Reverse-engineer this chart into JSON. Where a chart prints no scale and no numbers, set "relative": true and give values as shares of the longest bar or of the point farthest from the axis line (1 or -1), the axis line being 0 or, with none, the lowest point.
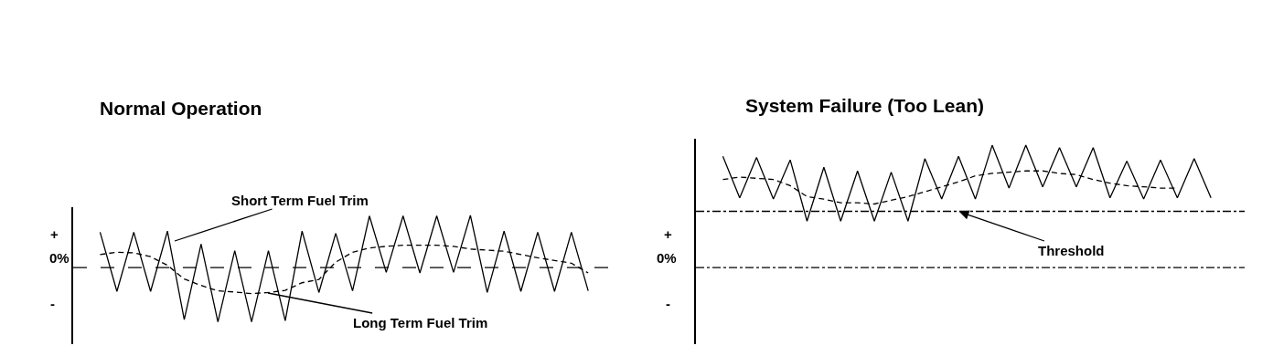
{
  "chart_data": [
    {
      "type": "line",
      "title": "Normal Operation",
      "relative": true,
      "categories": [
        null,
        null,
        null,
        null,
        null,
        null,
        null,
        null,
        null,
        null,
        null,
        null,
        null,
        null,
        null,
        null,
        null,
        null,
        null,
        null,
        null,
        null,
        null,
        null,
        null,
        null,
        null,
        null,
        null,
        null
      ],
      "marker": "none",
      "series": [
        {
          "color": "#000000",
          "line_style": "solid",
          "values": [
            0.65,
            -0.44,
            0.65,
            -0.44,
            0.67,
            -0.96,
            0.43,
            -1,
            0.31,
            -1,
            0.31,
            -0.98,
            0.67,
            -0.46,
            0.63,
            -0.43,
            0.95,
            -0.09,
            0.95,
            -0.1,
            0.95,
            -0.09,
            0.96,
            -0.46,
            0.67,
            -0.44,
            0.65,
            -0.44,
            0.65,
            -0.43
          ]
        },
        {
          "color": "#000000",
          "line_style": "dashed",
          "values": [
            0.24,
            0.28,
            0.27,
            0.2,
            0.04,
            -0.21,
            -0.33,
            -0.43,
            -0.45,
            -0.48,
            -0.46,
            -0.42,
            -0.28,
            -0.22,
            0.1,
            0.28,
            0.36,
            0.39,
            0.41,
            0.41,
            0.41,
            0.39,
            0.34,
            0.32,
            0.3,
            0.24,
            0.18,
            0.13,
            0.08,
            -0.1
          ]
        }
      ],
      "ref_lines": [
        {
          "axis": "y",
          "value": 0,
          "color": "#000000",
          "line_style": "dashed"
        }
      ],
      "annotations": [
        "+",
        "0%",
        "-",
        "Short Term Fuel Trim",
        "Long Term Fuel Trim"
      ]
    },
    {
      "type": "line",
      "title": "System Failure (Too Lean)",
      "relative": true,
      "categories": [
        null,
        null,
        null,
        null,
        null,
        null,
        null,
        null,
        null,
        null,
        null,
        null,
        null,
        null,
        null,
        null,
        null,
        null,
        null,
        null,
        null,
        null,
        null,
        null,
        null,
        null,
        null,
        null,
        null,
        null
      ],
      "marker": "none",
      "series": [
        {
          "color": "#000000",
          "line_style": "solid",
          "values": [
            0.91,
            0.57,
            0.9,
            0.56,
            0.88,
            0.38,
            0.82,
            0.38,
            0.79,
            0.38,
            0.78,
            0.38,
            0.89,
            0.56,
            0.91,
            0.56,
            1,
            0.65,
            1,
            0.66,
            0.98,
            0.66,
            0.98,
            0.57,
            0.87,
            0.56,
            0.88,
            0.57,
            0.89,
            0.57
          ]
        },
        {
          "color": "#000000",
          "line_style": "dashed",
          "values": [
            0.72,
            0.74,
            0.73,
            0.72,
            0.67,
            0.58,
            0.56,
            0.53,
            0.53,
            0.52,
            0.55,
            0.58,
            0.62,
            0.66,
            0.7,
            0.75,
            0.77,
            0.78,
            0.79,
            0.79,
            0.77,
            0.76,
            0.72,
            0.69,
            0.67,
            0.66,
            0.65,
            0.65,
            null,
            null
          ]
        }
      ],
      "ref_lines": [
        {
          "axis": "y",
          "value": 0,
          "color": "#000000",
          "line_style": "dashdot"
        },
        {
          "axis": "y",
          "value": 0.46,
          "color": "#000000",
          "line_style": "dashdot"
        }
      ],
      "annotations": [
        "+",
        "0%",
        "-",
        "Threshold"
      ]
    }
  ]
}
